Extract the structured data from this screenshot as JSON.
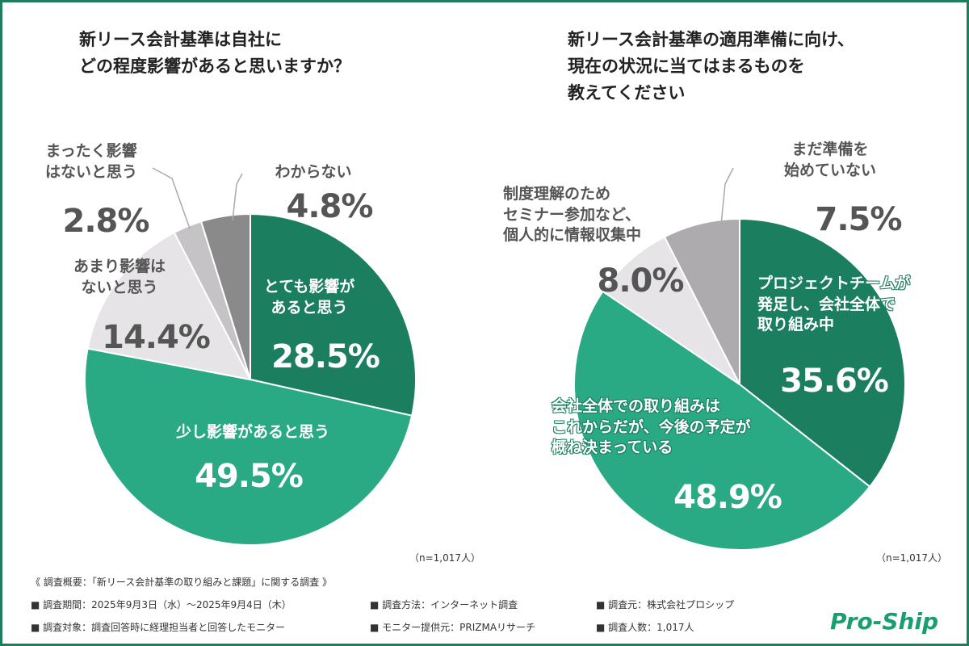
{
  "chart_data": [
    {
      "type": "pie",
      "title": [
        "新リース会計基準は自社に",
        "どの程度影響があると思いますか？"
      ],
      "categories": [
        "とても影響が\nあると思う",
        "少し影響があると思う",
        "あまり影響は\nないと思う",
        "まったく影響\nはないと思う",
        "わからない"
      ],
      "values": [
        28.5,
        49.5,
        14.4,
        2.8,
        4.8
      ],
      "value_labels": [
        "28.5%",
        "49.5%",
        "14.4%",
        "2.8%",
        "4.8%"
      ],
      "colors": [
        "#1b7e5e",
        "#2aa985",
        "#e6e4e7",
        "#c5c3c6",
        "#8b8a8b"
      ],
      "note": "（n=1,017人）"
    },
    {
      "type": "pie",
      "title": [
        "新リース会計基準の適用準備に向け、",
        "現在の状況に当てはまるものを",
        "教えてください"
      ],
      "categories": [
        "プロジェクトチームが\n発足し、会社全体で\n取り組み中",
        "会社全体での取り組みは\nこれからだが、今後の予定が\n概ね決まっている",
        "制度理解のため\nセミナー参加など、\n個人的に情報収集中",
        "まだ準備を\n始めていない"
      ],
      "values": [
        35.6,
        48.9,
        8.0,
        7.5
      ],
      "value_labels": [
        "35.6%",
        "48.9%",
        "8.0%",
        "7.5%"
      ],
      "colors": [
        "#1b7e5e",
        "#2aa985",
        "#e6e4e7",
        "#adabad"
      ],
      "note": "（n=1,017人）"
    }
  ],
  "footer": {
    "heading": "《 調査概要：「新リース会計基準の取り組みと課題」に関する調査 》",
    "items": [
      "■ 調査期間：2025年9月3日（水）～2025年9月4日（木）",
      "■ 調査方法：インターネット調査",
      "■ 調査元：株式会社プロシップ",
      "■ 調査対象：調査回答時に経理担当者と回答したモニター",
      "■ モニター提供元：PRIZMAリサーチ",
      "■ 調査人数：1,017人"
    ]
  },
  "logo": "Pro-Ship"
}
